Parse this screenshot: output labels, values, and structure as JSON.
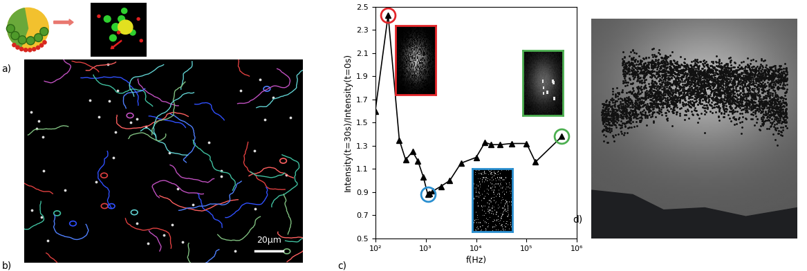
{
  "panel_labels": [
    "a)",
    "b)",
    "c)",
    "d)"
  ],
  "scale_bar": "20μm",
  "chart_data": {
    "type": "line",
    "x_label": "f(Hz)",
    "y_label": "Intensity(t=30s)/Intensity(t=0s)",
    "log": "x",
    "grid": false,
    "color": "#000000",
    "marker": "triangle",
    "line_style": "solid",
    "x": [
      100,
      180,
      300,
      400,
      550,
      700,
      900,
      1100,
      1200,
      1400,
      2000,
      3000,
      5000,
      10000,
      15000,
      20000,
      30000,
      50000,
      100000,
      150000,
      500000
    ],
    "values": [
      1.6,
      2.43,
      1.35,
      1.18,
      1.25,
      1.17,
      1.03,
      0.88,
      0.89,
      0.91,
      0.95,
      1.0,
      1.15,
      1.2,
      1.33,
      1.31,
      1.31,
      1.32,
      1.32,
      1.16,
      1.38
    ],
    "xlim": [
      100,
      1000000
    ],
    "ylim": [
      0.5,
      2.5
    ],
    "xticks": [
      {
        "value": 100,
        "label": "10²"
      },
      {
        "value": 1000,
        "label": "10³"
      },
      {
        "value": 10000,
        "label": "10⁴"
      },
      {
        "value": 100000,
        "label": "10⁵"
      },
      {
        "value": 1000000,
        "label": "10⁶"
      }
    ],
    "yticks": [
      0.5,
      0.7,
      0.9,
      1.1,
      1.3,
      1.5,
      1.7,
      1.9,
      2.1,
      2.3,
      2.5
    ],
    "circled": [
      {
        "x": 180,
        "color": "#e3262a"
      },
      {
        "x": 1100,
        "color": "#2a8fd0"
      },
      {
        "x": 500000,
        "color": "#4caf50"
      }
    ]
  }
}
